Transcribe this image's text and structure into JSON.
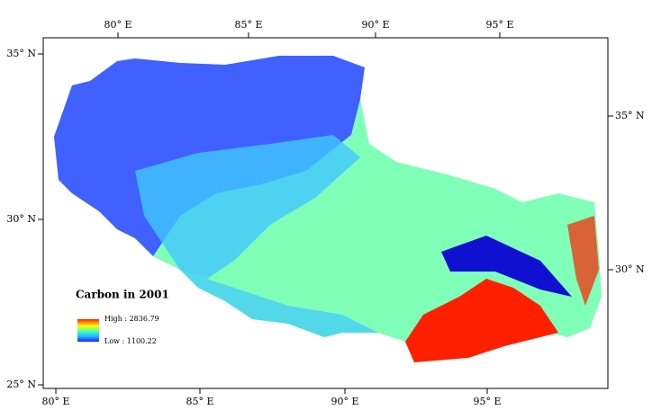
{
  "map": {
    "top_ticks": [
      "80° E",
      "85° E",
      "90° E",
      "95° E"
    ],
    "bottom_ticks": [
      "80° E",
      "85° E",
      "90° E",
      "95° E"
    ],
    "left_ticks": [
      "35° N",
      "30° N",
      "25° N"
    ],
    "right_ticks": [
      "35° N",
      "30° N"
    ],
    "legend": {
      "title": "Carbon in 2001",
      "high": "High : 2836.79",
      "low": "Low : 1100.22"
    }
  }
}
